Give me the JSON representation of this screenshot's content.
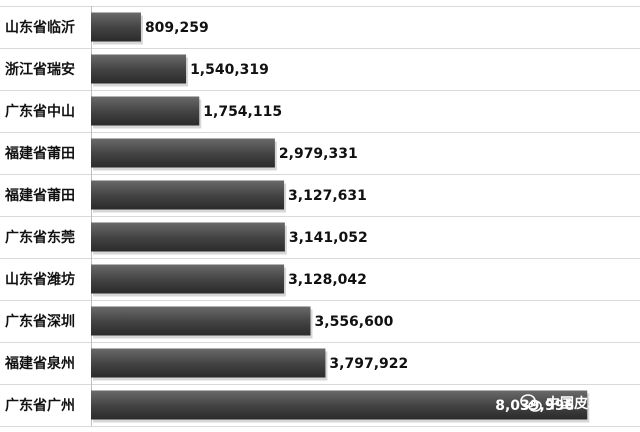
{
  "chart_data": {
    "type": "bar",
    "orientation": "horizontal",
    "categories": [
      "山东省临沂",
      "浙江省瑞安",
      "广东省中山",
      "福建省莆田",
      "福建省莆田",
      "广东省东莞",
      "山东省潍坊",
      "广东省深圳",
      "福建省泉州",
      "广东省广州"
    ],
    "values": [
      809259,
      1540319,
      1754115,
      2979331,
      3127631,
      3141052,
      3128042,
      3556600,
      3797922,
      8039996
    ],
    "value_labels": [
      "809,259",
      "1,540,319",
      "1,754,115",
      "2,979,331",
      "3,127,631",
      "3,141,052",
      "3,128,042",
      "3,556,600",
      "3,797,922",
      "8,039,9​96"
    ],
    "xlim": [
      0,
      8700000
    ],
    "grid": true,
    "legend": "none",
    "bar_color": "#4a4a4a"
  },
  "watermark": {
    "icon": "wechat-icon",
    "text": "中国皮革"
  }
}
